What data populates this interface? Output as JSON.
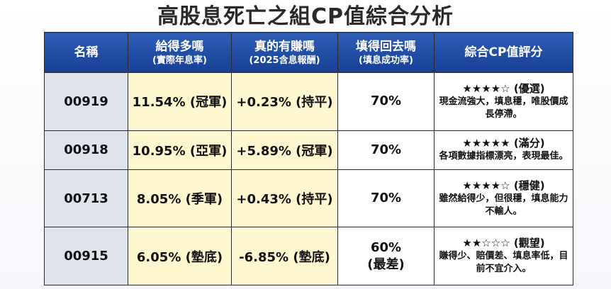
{
  "title": "高股息死亡之組CP值綜合分析",
  "headers": [
    {
      "main": "名稱",
      "sub": ""
    },
    {
      "main": "給得多嗎",
      "sub": "(實際年息率)"
    },
    {
      "main": "真的有賺嗎",
      "sub": "(2025含息報酬)"
    },
    {
      "main": "填得回去嗎",
      "sub": "(填息成功率)"
    },
    {
      "main": "綜合CP值評分",
      "sub": ""
    }
  ],
  "rows": [
    {
      "code": "00919",
      "yield": "11.54% (冠軍)",
      "return": "+0.23% (持平)",
      "fill_rate": [
        "70%"
      ],
      "stars": "★★★★☆",
      "verdict": "(優選)",
      "comment": "現金流強大，填息穩，唯股價成長停滯。"
    },
    {
      "code": "00918",
      "yield": "10.95% (亞軍)",
      "return": "+5.89% (冠軍)",
      "fill_rate": [
        "70%"
      ],
      "stars": "★★★★★",
      "verdict": "(滿分)",
      "comment": "各項數據指標漂亮，表現最佳。"
    },
    {
      "code": "00713",
      "yield": "8.05% (季軍)",
      "return": "+0.43% (持平)",
      "fill_rate": [
        "70%"
      ],
      "stars": "★★★★☆",
      "verdict": "(穩健)",
      "comment": "雖然給得少，但很穩，填息能力不輸人。"
    },
    {
      "code": "00915",
      "yield": "6.05% (墊底)",
      "return": "-6.85% (墊底)",
      "fill_rate": [
        "60%",
        "(最差)"
      ],
      "stars": "★★☆☆☆",
      "verdict": "(觀望)",
      "comment": "賺得少、賠價差、填息率低，目前不宜介入。"
    }
  ],
  "colors": {
    "header_bg": "#1f4aa3",
    "code_bg": "#dfe3ec",
    "yellow_bg": "#fff7d0",
    "border": "#2b2b2b"
  }
}
